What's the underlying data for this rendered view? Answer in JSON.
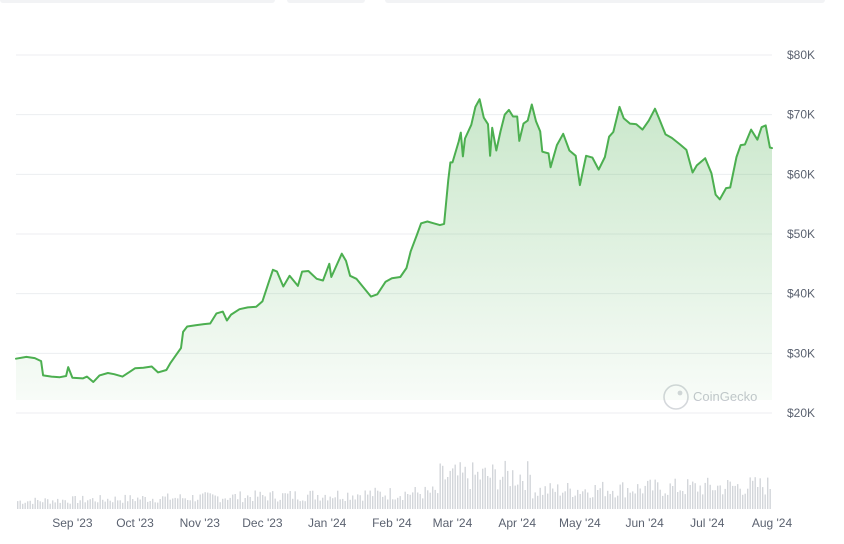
{
  "chart_data": {
    "type": "area",
    "title": "",
    "xlabel": "",
    "ylabel": "",
    "ylim": [
      20000,
      80000
    ],
    "y_ticks": [
      {
        "value": 80000,
        "label": "$80K"
      },
      {
        "value": 70000,
        "label": "$70K"
      },
      {
        "value": 60000,
        "label": "$60K"
      },
      {
        "value": 50000,
        "label": "$50K"
      },
      {
        "value": 40000,
        "label": "$40K"
      },
      {
        "value": 30000,
        "label": "$30K"
      },
      {
        "value": 20000,
        "label": "$20K"
      }
    ],
    "x_ticks": [
      {
        "date": "2023-09-01",
        "label": "Sep '23"
      },
      {
        "date": "2023-10-01",
        "label": "Oct '23"
      },
      {
        "date": "2023-11-01",
        "label": "Nov '23"
      },
      {
        "date": "2023-12-01",
        "label": "Dec '23"
      },
      {
        "date": "2024-01-01",
        "label": "Jan '24"
      },
      {
        "date": "2024-02-01",
        "label": "Feb '24"
      },
      {
        "date": "2024-03-01",
        "label": "Mar '24"
      },
      {
        "date": "2024-04-01",
        "label": "Apr '24"
      },
      {
        "date": "2024-05-01",
        "label": "May '24"
      },
      {
        "date": "2024-06-01",
        "label": "Jun '24"
      },
      {
        "date": "2024-07-01",
        "label": "Jul '24"
      },
      {
        "date": "2024-08-01",
        "label": "Aug '24"
      }
    ],
    "grid": true,
    "line_color": "#4caf50",
    "fill_color": "#4caf50",
    "volume_color": "#d3d6da",
    "watermark": "CoinGecko",
    "series": [
      {
        "values": [
          [
            "2023-08-05",
            29100
          ],
          [
            "2023-08-10",
            29400
          ],
          [
            "2023-08-14",
            29200
          ],
          [
            "2023-08-17",
            28700
          ],
          [
            "2023-08-18",
            26300
          ],
          [
            "2023-08-22",
            26100
          ],
          [
            "2023-08-26",
            26000
          ],
          [
            "2023-08-29",
            26200
          ],
          [
            "2023-08-30",
            27700
          ],
          [
            "2023-09-01",
            25900
          ],
          [
            "2023-09-06",
            25800
          ],
          [
            "2023-09-08",
            26100
          ],
          [
            "2023-09-11",
            25200
          ],
          [
            "2023-09-14",
            26300
          ],
          [
            "2023-09-18",
            26700
          ],
          [
            "2023-09-21",
            26500
          ],
          [
            "2023-09-25",
            26100
          ],
          [
            "2023-09-28",
            26800
          ],
          [
            "2023-10-01",
            27500
          ],
          [
            "2023-10-05",
            27600
          ],
          [
            "2023-10-09",
            27800
          ],
          [
            "2023-10-12",
            26800
          ],
          [
            "2023-10-16",
            27200
          ],
          [
            "2023-10-18",
            28400
          ],
          [
            "2023-10-21",
            29900
          ],
          [
            "2023-10-23",
            30900
          ],
          [
            "2023-10-24",
            33600
          ],
          [
            "2023-10-26",
            34500
          ],
          [
            "2023-10-30",
            34700
          ],
          [
            "2023-11-03",
            34900
          ],
          [
            "2023-11-06",
            35000
          ],
          [
            "2023-11-09",
            36700
          ],
          [
            "2023-11-12",
            37000
          ],
          [
            "2023-11-14",
            35500
          ],
          [
            "2023-11-16",
            36500
          ],
          [
            "2023-11-20",
            37400
          ],
          [
            "2023-11-24",
            37700
          ],
          [
            "2023-11-28",
            37800
          ],
          [
            "2023-12-01",
            38700
          ],
          [
            "2023-12-04",
            41900
          ],
          [
            "2023-12-06",
            44000
          ],
          [
            "2023-12-08",
            43700
          ],
          [
            "2023-12-11",
            41200
          ],
          [
            "2023-12-14",
            43000
          ],
          [
            "2023-12-18",
            41300
          ],
          [
            "2023-12-20",
            43700
          ],
          [
            "2023-12-23",
            43800
          ],
          [
            "2023-12-27",
            42500
          ],
          [
            "2023-12-30",
            42200
          ],
          [
            "2024-01-02",
            45000
          ],
          [
            "2024-01-03",
            42800
          ],
          [
            "2024-01-08",
            46700
          ],
          [
            "2024-01-10",
            45500
          ],
          [
            "2024-01-12",
            43000
          ],
          [
            "2024-01-15",
            42500
          ],
          [
            "2024-01-18",
            41200
          ],
          [
            "2024-01-22",
            39500
          ],
          [
            "2024-01-25",
            39900
          ],
          [
            "2024-01-29",
            42000
          ],
          [
            "2024-02-01",
            42600
          ],
          [
            "2024-02-05",
            42800
          ],
          [
            "2024-02-08",
            44300
          ],
          [
            "2024-02-10",
            47100
          ],
          [
            "2024-02-13",
            49900
          ],
          [
            "2024-02-15",
            51800
          ],
          [
            "2024-02-18",
            52100
          ],
          [
            "2024-02-21",
            51800
          ],
          [
            "2024-02-24",
            51500
          ],
          [
            "2024-02-26",
            51700
          ],
          [
            "2024-02-28",
            59100
          ],
          [
            "2024-02-29",
            62000
          ],
          [
            "2024-03-01",
            62000
          ],
          [
            "2024-03-04",
            65500
          ],
          [
            "2024-03-05",
            67000
          ],
          [
            "2024-03-06",
            63000
          ],
          [
            "2024-03-07",
            66000
          ],
          [
            "2024-03-10",
            68300
          ],
          [
            "2024-03-12",
            71300
          ],
          [
            "2024-03-14",
            72600
          ],
          [
            "2024-03-16",
            69500
          ],
          [
            "2024-03-18",
            68400
          ],
          [
            "2024-03-19",
            63100
          ],
          [
            "2024-03-20",
            67800
          ],
          [
            "2024-03-22",
            64000
          ],
          [
            "2024-03-24",
            67200
          ],
          [
            "2024-03-26",
            70000
          ],
          [
            "2024-03-28",
            70800
          ],
          [
            "2024-03-30",
            69700
          ],
          [
            "2024-04-01",
            69700
          ],
          [
            "2024-04-02",
            65600
          ],
          [
            "2024-04-04",
            68500
          ],
          [
            "2024-04-06",
            69000
          ],
          [
            "2024-04-08",
            71700
          ],
          [
            "2024-04-10",
            68900
          ],
          [
            "2024-04-12",
            67200
          ],
          [
            "2024-04-13",
            63800
          ],
          [
            "2024-04-16",
            63500
          ],
          [
            "2024-04-17",
            61200
          ],
          [
            "2024-04-20",
            64900
          ],
          [
            "2024-04-23",
            66800
          ],
          [
            "2024-04-26",
            64000
          ],
          [
            "2024-04-29",
            63100
          ],
          [
            "2024-05-01",
            58200
          ],
          [
            "2024-05-04",
            63100
          ],
          [
            "2024-05-07",
            62800
          ],
          [
            "2024-05-10",
            60800
          ],
          [
            "2024-05-13",
            62900
          ],
          [
            "2024-05-15",
            66300
          ],
          [
            "2024-05-17",
            67100
          ],
          [
            "2024-05-20",
            71300
          ],
          [
            "2024-05-22",
            69400
          ],
          [
            "2024-05-25",
            68500
          ],
          [
            "2024-05-28",
            68400
          ],
          [
            "2024-05-31",
            67500
          ],
          [
            "2024-06-03",
            69000
          ],
          [
            "2024-06-06",
            71000
          ],
          [
            "2024-06-08",
            69300
          ],
          [
            "2024-06-11",
            66700
          ],
          [
            "2024-06-14",
            66100
          ],
          [
            "2024-06-18",
            65000
          ],
          [
            "2024-06-21",
            64100
          ],
          [
            "2024-06-24",
            60300
          ],
          [
            "2024-06-26",
            61500
          ],
          [
            "2024-06-30",
            62700
          ],
          [
            "2024-07-03",
            60200
          ],
          [
            "2024-07-05",
            56600
          ],
          [
            "2024-07-07",
            55800
          ],
          [
            "2024-07-10",
            57700
          ],
          [
            "2024-07-12",
            57800
          ],
          [
            "2024-07-15",
            62900
          ],
          [
            "2024-07-17",
            64900
          ],
          [
            "2024-07-19",
            65000
          ],
          [
            "2024-07-22",
            67500
          ],
          [
            "2024-07-25",
            65800
          ],
          [
            "2024-07-27",
            67900
          ],
          [
            "2024-07-29",
            68200
          ],
          [
            "2024-07-31",
            64500
          ],
          [
            "2024-08-01",
            64400
          ]
        ]
      }
    ]
  }
}
